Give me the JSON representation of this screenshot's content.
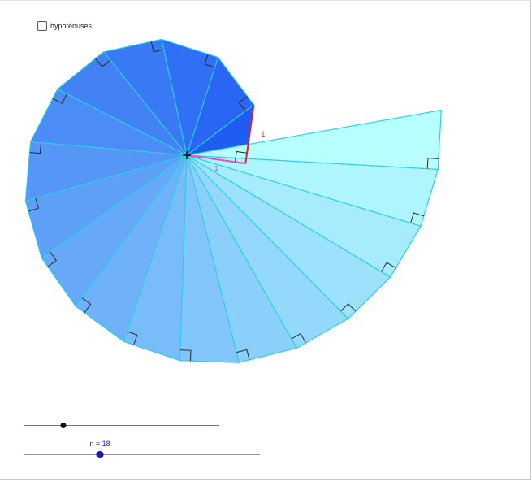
{
  "checkbox": {
    "label": "hypoténuses",
    "checked": false
  },
  "spiral": {
    "count": 18,
    "unit_label_leg": "1",
    "unit_label_base": "1",
    "colors": {
      "dark_blue": "#1f5cf2",
      "light_cyan": "#b8ffff",
      "edge_cyan": "#29cfe8",
      "unit_leg_red": "#e0202a",
      "unit_base_magenta": "#e04fd0",
      "right_angle_marker": "#2a2a2a"
    }
  },
  "slider_a": {
    "value_fraction": 0.2
  },
  "slider_n": {
    "label": "n = 18",
    "value": 18,
    "min": 1,
    "max": 54
  }
}
